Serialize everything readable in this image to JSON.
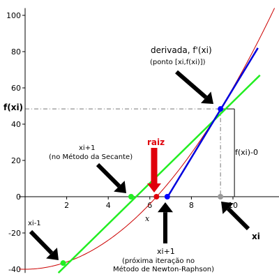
{
  "chart_data": {
    "type": "line",
    "xlabel": "x",
    "ylabel": "",
    "xlim": [
      -0.3,
      12.5
    ],
    "ylim": [
      -42,
      104
    ],
    "x_ticks": [
      2,
      4,
      6,
      8,
      10
    ],
    "y_ticks": [
      -40,
      -20,
      0,
      20,
      40,
      60,
      80,
      100
    ],
    "series": [
      {
        "kind": "curve",
        "color": "#cc0000",
        "function": "x^2 - 40",
        "x_range": [
          -0.3,
          12.0
        ]
      },
      {
        "kind": "secant-line",
        "color": "#22ee22",
        "x": [
          1.6,
          11.3
        ],
        "y": [
          -42,
          67
        ]
      },
      {
        "kind": "tangent-line",
        "color": "#0000dd",
        "x": [
          6.86,
          11.2
        ],
        "y": [
          0,
          82
        ]
      }
    ],
    "points": [
      {
        "name": "xi-1",
        "x": 1.83,
        "y": -36.6,
        "color": "#22ee22"
      },
      {
        "name": "xi+1 secante",
        "x": 5.1,
        "y": 0,
        "color": "#22ee22"
      },
      {
        "name": "raiz",
        "x": 6.32,
        "y": 0,
        "color": "#e0000b"
      },
      {
        "name": "xi+1 newton",
        "x": 6.84,
        "y": 0,
        "color": "#0000ff"
      },
      {
        "name": "xi",
        "x": 9.4,
        "y": 0,
        "color": "#999999"
      },
      {
        "name": "f(xi)",
        "x": 9.4,
        "y": 48.4,
        "color": "#0000ff"
      }
    ],
    "guides": {
      "fxi_y": 48.4,
      "xi_x": 9.4
    },
    "annotations": {
      "fxi_label": "f(xi)",
      "derivada_line1": "derivada, f'(xi)",
      "derivada_line2": "(ponto [xi,f(xi)])",
      "raiz": "raiz",
      "secante_line1": "xi+1",
      "secante_line2": "(no Método da Secante)",
      "xim1": "xi-1",
      "fxi0": "f(xi)-0",
      "xi": "xi",
      "newton_line1": "xi+1",
      "newton_line2": "(próxima iteração no",
      "newton_line3": "Método de Newton-Raphson)"
    }
  }
}
